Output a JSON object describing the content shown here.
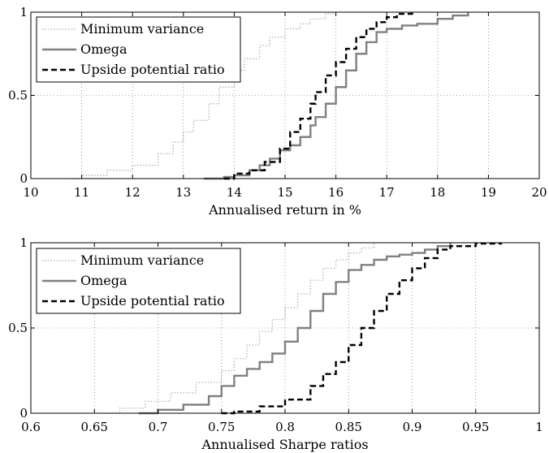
{
  "chart_data": [
    {
      "type": "line",
      "xlabel": "Annualised return in %",
      "ylabel": "",
      "xlim": [
        10,
        20
      ],
      "ylim": [
        0,
        1
      ],
      "xticks": [
        "10",
        "11",
        "12",
        "13",
        "14",
        "15",
        "16",
        "17",
        "18",
        "19",
        "20"
      ],
      "yticks": [
        "0",
        "0.5",
        "1"
      ],
      "grid": true,
      "legend": "top-left",
      "series": [
        {
          "name": "Minimum variance",
          "color": "#9a9a9a",
          "style": "dotted",
          "x": [
            10.8,
            11.0,
            11.5,
            12.0,
            12.5,
            12.8,
            13.0,
            13.2,
            13.5,
            13.7,
            14.0,
            14.2,
            14.5,
            14.7,
            15.0,
            15.3,
            15.5,
            15.8,
            16.0
          ],
          "y": [
            0.0,
            0.02,
            0.05,
            0.08,
            0.15,
            0.22,
            0.28,
            0.35,
            0.45,
            0.55,
            0.65,
            0.72,
            0.8,
            0.85,
            0.9,
            0.93,
            0.96,
            0.99,
            1.0
          ]
        },
        {
          "name": "Omega",
          "color": "#808080",
          "style": "solid",
          "x": [
            13.4,
            13.8,
            14.0,
            14.3,
            14.5,
            14.7,
            14.9,
            15.1,
            15.3,
            15.5,
            15.6,
            15.8,
            16.0,
            16.2,
            16.4,
            16.6,
            16.8,
            17.0,
            17.3,
            17.6,
            18.0,
            18.3,
            18.6
          ],
          "y": [
            0.0,
            0.01,
            0.02,
            0.05,
            0.08,
            0.12,
            0.17,
            0.2,
            0.25,
            0.32,
            0.37,
            0.45,
            0.55,
            0.65,
            0.75,
            0.82,
            0.88,
            0.9,
            0.92,
            0.93,
            0.96,
            0.98,
            1.0
          ]
        },
        {
          "name": "Upside potential ratio",
          "color": "#000000",
          "style": "dashed",
          "x": [
            13.8,
            14.0,
            14.3,
            14.6,
            14.9,
            15.1,
            15.3,
            15.5,
            15.6,
            15.8,
            16.0,
            16.2,
            16.4,
            16.6,
            16.8,
            17.0,
            17.2,
            17.5
          ],
          "y": [
            0.0,
            0.03,
            0.05,
            0.1,
            0.18,
            0.28,
            0.36,
            0.45,
            0.52,
            0.62,
            0.7,
            0.78,
            0.85,
            0.9,
            0.94,
            0.97,
            0.99,
            1.0
          ]
        }
      ]
    },
    {
      "type": "line",
      "xlabel": "Annualised Sharpe ratios",
      "ylabel": "",
      "xlim": [
        0.6,
        1.0
      ],
      "ylim": [
        0,
        1
      ],
      "xticks": [
        "0.6",
        "0.65",
        "0.7",
        "0.75",
        "0.8",
        "0.85",
        "0.9",
        "0.95",
        "1"
      ],
      "yticks": [
        "0",
        "0.5",
        "1"
      ],
      "grid": true,
      "legend": "top-left",
      "series": [
        {
          "name": "Minimum variance",
          "color": "#9a9a9a",
          "style": "dotted",
          "x": [
            0.66,
            0.67,
            0.69,
            0.71,
            0.73,
            0.75,
            0.76,
            0.77,
            0.78,
            0.79,
            0.8,
            0.81,
            0.82,
            0.83,
            0.84,
            0.85,
            0.86,
            0.87
          ],
          "y": [
            0.0,
            0.03,
            0.07,
            0.12,
            0.18,
            0.25,
            0.32,
            0.4,
            0.48,
            0.55,
            0.62,
            0.7,
            0.78,
            0.85,
            0.9,
            0.94,
            0.97,
            1.0
          ]
        },
        {
          "name": "Omega",
          "color": "#808080",
          "style": "solid",
          "x": [
            0.685,
            0.7,
            0.72,
            0.74,
            0.75,
            0.76,
            0.77,
            0.78,
            0.79,
            0.8,
            0.81,
            0.82,
            0.83,
            0.84,
            0.85,
            0.86,
            0.87,
            0.88,
            0.89,
            0.9,
            0.91,
            0.92,
            0.93
          ],
          "y": [
            0.0,
            0.02,
            0.05,
            0.1,
            0.16,
            0.22,
            0.26,
            0.3,
            0.35,
            0.42,
            0.5,
            0.6,
            0.7,
            0.77,
            0.84,
            0.87,
            0.9,
            0.92,
            0.93,
            0.94,
            0.96,
            0.98,
            1.0
          ]
        },
        {
          "name": "Upside potential ratio",
          "color": "#000000",
          "style": "dashed",
          "x": [
            0.75,
            0.76,
            0.78,
            0.8,
            0.82,
            0.83,
            0.84,
            0.85,
            0.86,
            0.87,
            0.88,
            0.89,
            0.9,
            0.91,
            0.92,
            0.93,
            0.95,
            0.97
          ],
          "y": [
            0.0,
            0.01,
            0.04,
            0.08,
            0.16,
            0.23,
            0.3,
            0.4,
            0.5,
            0.6,
            0.7,
            0.78,
            0.85,
            0.91,
            0.96,
            0.98,
            0.995,
            1.0
          ]
        }
      ]
    }
  ]
}
